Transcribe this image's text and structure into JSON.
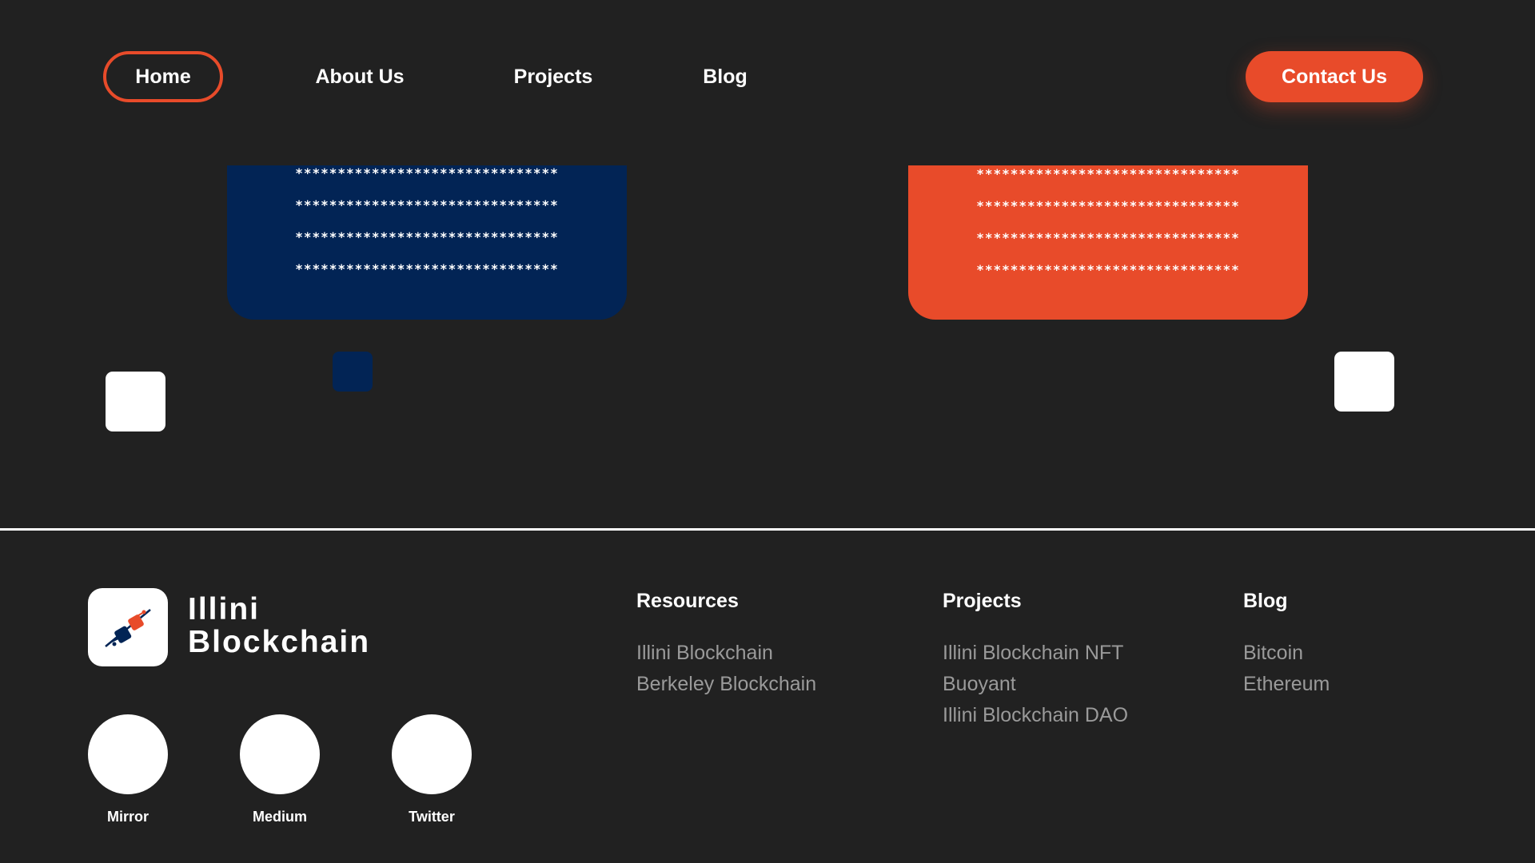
{
  "nav": {
    "home": "Home",
    "about": "About Us",
    "projects": "Projects",
    "blog": "Blog",
    "contact": "Contact Us"
  },
  "cards": {
    "blue": {
      "lines": [
        "*******************************",
        "*******************************",
        "*******************************",
        "*******************************"
      ]
    },
    "orange": {
      "lines": [
        "*******************************",
        "*******************************",
        "*******************************",
        "*******************************"
      ]
    }
  },
  "footer": {
    "brand": {
      "line1": "Illini",
      "line2": "Blockchain",
      "logo_icon": "blockchain-logo-icon"
    },
    "social": [
      {
        "label": "Mirror"
      },
      {
        "label": "Medium"
      },
      {
        "label": "Twitter"
      }
    ],
    "columns": [
      {
        "title": "Resources",
        "links": [
          "Illini Blockchain",
          "Berkeley Blockchain"
        ]
      },
      {
        "title": "Projects",
        "links": [
          "Illini Blockchain NFT",
          "Buoyant",
          "Illini Blockchain DAO"
        ]
      },
      {
        "title": "Blog",
        "links": [
          "Bitcoin",
          "Ethereum"
        ]
      }
    ]
  },
  "colors": {
    "accent": "#e84b2a",
    "navy": "#022455",
    "background": "#212121",
    "muted_text": "#9a9a9a"
  }
}
